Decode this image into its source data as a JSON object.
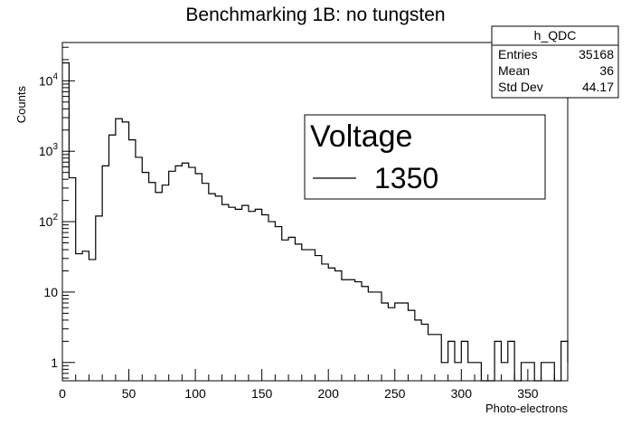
{
  "chart_data": {
    "type": "histogram",
    "title": "Benchmarking 1B: no tungsten",
    "xlabel": "Photo-electrons",
    "ylabel": "Counts",
    "xlim": [
      0,
      380
    ],
    "ylim": [
      0.55,
      35000
    ],
    "yscale": "log",
    "grid": false,
    "bin_width": 5,
    "x_ticks": [
      0,
      50,
      100,
      150,
      200,
      250,
      300,
      350
    ],
    "y_ticks": [
      {
        "value": 1,
        "label": "1"
      },
      {
        "value": 10,
        "label": "10"
      },
      {
        "value": 100,
        "label": "10^2"
      },
      {
        "value": 1000,
        "label": "10^3"
      },
      {
        "value": 10000,
        "label": "10^4"
      }
    ],
    "series": [
      {
        "name": "1350",
        "x_start": 0,
        "values": [
          18000,
          420,
          35,
          38,
          29,
          120,
          620,
          1700,
          2900,
          2600,
          1450,
          820,
          500,
          360,
          260,
          330,
          520,
          620,
          680,
          590,
          480,
          350,
          250,
          230,
          175,
          160,
          150,
          170,
          140,
          150,
          125,
          100,
          85,
          55,
          60,
          48,
          40,
          40,
          33,
          25,
          22,
          20,
          15,
          15,
          14,
          12,
          10,
          10,
          7,
          6,
          7,
          7,
          5.5,
          4,
          3.5,
          2.5,
          2.5,
          1,
          2,
          1,
          2,
          1,
          1,
          0,
          0,
          2,
          1,
          2,
          0,
          1,
          1,
          0,
          1,
          1,
          0,
          2,
          1
        ]
      }
    ],
    "legend": {
      "title": "Voltage",
      "position": "top-right"
    }
  },
  "stats_box": {
    "name": "h_QDC",
    "rows": [
      {
        "label": "Entries",
        "value": "35168"
      },
      {
        "label": "Mean",
        "value": "36"
      },
      {
        "label": "Std Dev",
        "value": "44.17"
      }
    ]
  }
}
